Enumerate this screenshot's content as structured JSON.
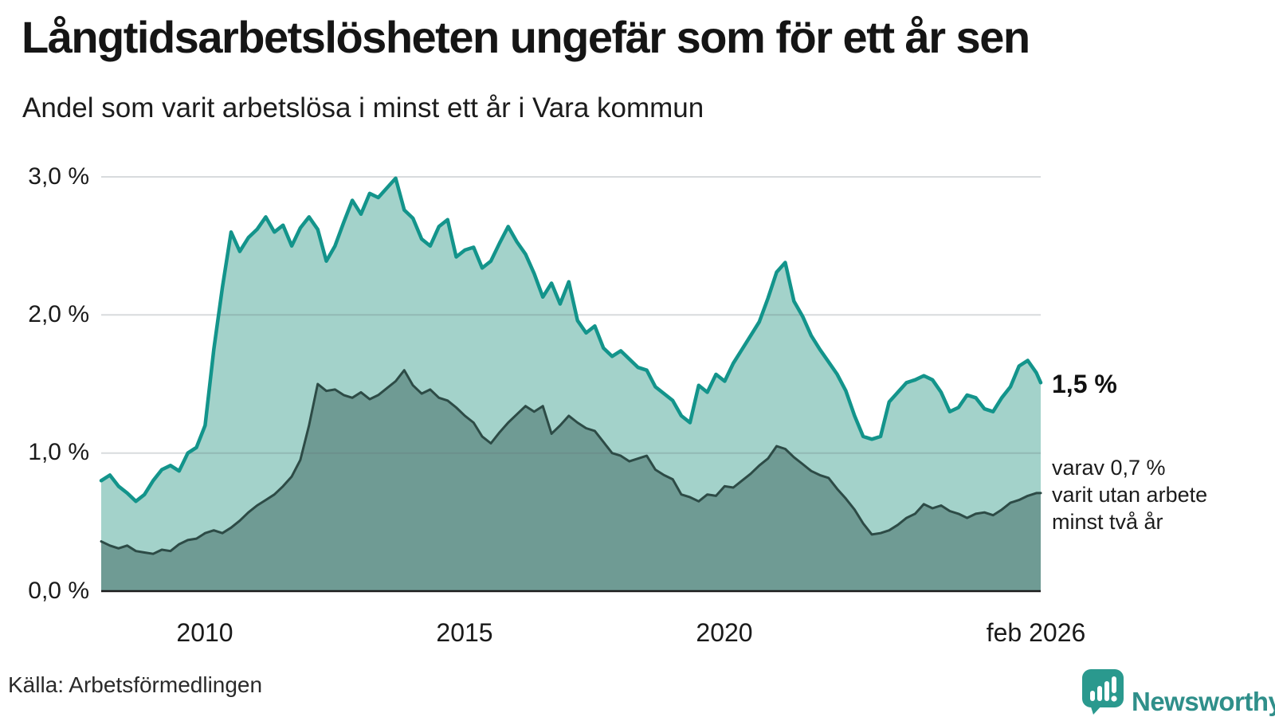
{
  "header": {
    "title": "Långtidsarbetslösheten ungefär som för ett år sen",
    "subtitle": "Andel som varit arbetslösa i minst ett år i Vara kommun"
  },
  "chart_data": {
    "type": "area",
    "title": "Långtidsarbetslösheten ungefär som för ett år sen",
    "subtitle": "Andel som varit arbetslösa i minst ett år i Vara kommun",
    "unit": "%",
    "x_start": 2008.0,
    "x_step_years": 0.1666667,
    "x_end": 2026.0833,
    "ylim": [
      0,
      3.0
    ],
    "grid": "horizontal",
    "legend_position": "none",
    "yticks": [
      {
        "v": 0,
        "label": "0,0 %"
      },
      {
        "v": 1,
        "label": "1,0 %"
      },
      {
        "v": 2,
        "label": "2,0 %"
      },
      {
        "v": 3,
        "label": "3,0 %"
      }
    ],
    "xticks": [
      {
        "t": 2010.0,
        "label": "2010"
      },
      {
        "t": 2015.0,
        "label": "2015"
      },
      {
        "t": 2020.0,
        "label": "2020"
      },
      {
        "t": 2026.0833,
        "label": "feb 2026"
      }
    ],
    "series": [
      {
        "name": "Andel arbetslösa minst ett år",
        "line_color": "#13948b",
        "fill_color": "#a3d2ca",
        "line_width": 4.5,
        "end_value": 1.5,
        "end_label": "1,5 %",
        "values": [
          0.8,
          0.84,
          0.76,
          0.71,
          0.65,
          0.7,
          0.8,
          0.88,
          0.91,
          0.87,
          1.0,
          1.04,
          1.2,
          1.75,
          2.2,
          2.6,
          2.46,
          2.56,
          2.62,
          2.71,
          2.6,
          2.65,
          2.5,
          2.63,
          2.71,
          2.62,
          2.39,
          2.5,
          2.67,
          2.83,
          2.73,
          2.88,
          2.85,
          2.92,
          2.99,
          2.76,
          2.7,
          2.55,
          2.5,
          2.64,
          2.69,
          2.42,
          2.47,
          2.49,
          2.34,
          2.39,
          2.52,
          2.64,
          2.53,
          2.44,
          2.3,
          2.13,
          2.23,
          2.08,
          2.24,
          1.96,
          1.87,
          1.92,
          1.76,
          1.7,
          1.74,
          1.68,
          1.62,
          1.6,
          1.48,
          1.43,
          1.38,
          1.27,
          1.22,
          1.49,
          1.44,
          1.57,
          1.52,
          1.65,
          1.75,
          1.85,
          1.95,
          2.12,
          2.31,
          2.38,
          2.1,
          1.99,
          1.85,
          1.75,
          1.66,
          1.57,
          1.45,
          1.27,
          1.12,
          1.1,
          1.12,
          1.37,
          1.44,
          1.51,
          1.53,
          1.56,
          1.53,
          1.44,
          1.3,
          1.33,
          1.42,
          1.4,
          1.32,
          1.3,
          1.4,
          1.48,
          1.63,
          1.67,
          1.58,
          1.51
        ]
      },
      {
        "name": "Andel arbetslösa minst två år",
        "line_color": "#2d4b46",
        "fill_color": "#6f9b94",
        "line_width": 3,
        "end_value": 0.7,
        "end_label": "varav 0,7 % varit utan arbete minst två år",
        "values": [
          0.36,
          0.33,
          0.31,
          0.33,
          0.29,
          0.28,
          0.27,
          0.3,
          0.29,
          0.34,
          0.37,
          0.38,
          0.42,
          0.44,
          0.42,
          0.46,
          0.51,
          0.57,
          0.62,
          0.66,
          0.7,
          0.76,
          0.83,
          0.95,
          1.2,
          1.5,
          1.45,
          1.46,
          1.42,
          1.4,
          1.44,
          1.39,
          1.42,
          1.47,
          1.52,
          1.6,
          1.49,
          1.43,
          1.46,
          1.4,
          1.38,
          1.33,
          1.27,
          1.22,
          1.12,
          1.07,
          1.15,
          1.22,
          1.28,
          1.34,
          1.3,
          1.34,
          1.14,
          1.2,
          1.27,
          1.22,
          1.18,
          1.16,
          1.08,
          1.0,
          0.98,
          0.94,
          0.96,
          0.98,
          0.88,
          0.84,
          0.81,
          0.7,
          0.68,
          0.65,
          0.7,
          0.69,
          0.76,
          0.75,
          0.8,
          0.85,
          0.91,
          0.96,
          1.05,
          1.03,
          0.97,
          0.92,
          0.87,
          0.84,
          0.82,
          0.74,
          0.67,
          0.59,
          0.49,
          0.41,
          0.42,
          0.44,
          0.48,
          0.53,
          0.56,
          0.63,
          0.6,
          0.62,
          0.58,
          0.56,
          0.53,
          0.56,
          0.57,
          0.55,
          0.59,
          0.64,
          0.66,
          0.69,
          0.71,
          0.71
        ]
      }
    ]
  },
  "annotations": {
    "end_value_label": "1,5 %",
    "secondary_lines": [
      "varav 0,7 %",
      "varit utan arbete",
      "minst två år"
    ]
  },
  "footer": {
    "source": "Källa: Arbetsförmedlingen",
    "brand_name": "Newsworthy"
  }
}
